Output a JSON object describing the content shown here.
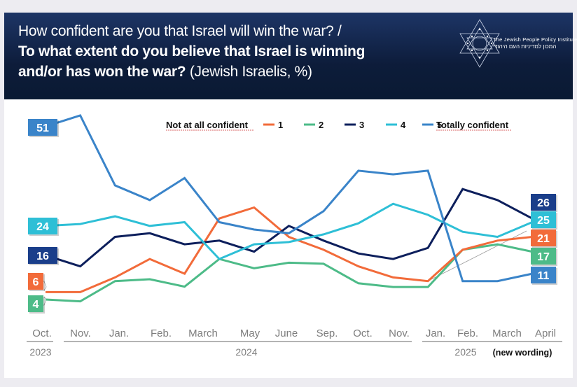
{
  "header": {
    "title_line1": "How confident are you that Israel will win the war? /",
    "title_line2": "To what extent do you believe that Israel is winning",
    "title_line3_bold": "and/or has won the war?",
    "title_line3_rest": " (Jewish Israelis, %)",
    "logo_text_en": "The Jewish People Policy Institute",
    "logo_text_he": "המכון למדיניות העם היהודי"
  },
  "chart_data": {
    "type": "line",
    "title": "How confident are you that Israel will win the war? / To what extent do you believe that Israel is winning and/or has won the war? (Jewish Israelis, %)",
    "xlabel": "",
    "ylabel": "%",
    "ylim": [
      0,
      56
    ],
    "grid": false,
    "legend_position": "top",
    "legend": {
      "prefix": "Not at all confident",
      "suffix": "Totally confident",
      "entries": [
        "1",
        "2",
        "3",
        "4",
        "5"
      ]
    },
    "x_ticks": [
      "Oct.",
      "Nov.",
      "Jan.",
      "Feb.",
      "March",
      "May",
      "June",
      "Sep.",
      "Oct.",
      "Nov.",
      "Jan.",
      "Feb.",
      "March",
      "April"
    ],
    "year_labels": [
      "2023",
      "2024",
      "2025"
    ],
    "note": "(new wording)",
    "series": [
      {
        "name": "1",
        "color": "#f26b3a",
        "values": [
          6,
          6,
          10,
          15,
          11,
          26,
          29,
          21,
          17.5,
          13,
          10,
          9,
          17.5,
          20,
          21
        ],
        "start_label": "6",
        "end_label": "21"
      },
      {
        "name": "2",
        "color": "#4dbb88",
        "values": [
          4,
          3.5,
          9,
          9.5,
          7.5,
          15,
          12.5,
          14,
          13.7,
          8.4,
          7.4,
          7.4,
          17.5,
          19,
          17
        ],
        "start_label": "4",
        "end_label": "17"
      },
      {
        "name": "3",
        "color": "#0d1f5c",
        "values": [
          16,
          13,
          21,
          22,
          19,
          20,
          17,
          24,
          20,
          16.5,
          15,
          18,
          34,
          31,
          26
        ],
        "start_label": "16",
        "end_label": "26"
      },
      {
        "name": "4",
        "color": "#2ebfd6",
        "values": [
          24,
          24.5,
          26.6,
          24,
          25,
          15,
          19,
          19.6,
          21.7,
          24.7,
          30,
          27,
          22.4,
          21,
          25
        ],
        "start_label": "24",
        "end_label": "25"
      },
      {
        "name": "5",
        "color": "#3a84c9",
        "values": [
          51,
          54,
          35,
          31,
          37,
          25,
          23,
          22,
          28,
          39,
          38,
          39,
          9,
          9,
          11
        ],
        "start_label": "51",
        "end_label": "11"
      }
    ],
    "label_colors": {
      "1": "#f26b3a",
      "2": "#4dbb88",
      "3": "#1a3e8a",
      "4": "#2ebfd6",
      "5": "#3a84c9"
    }
  }
}
